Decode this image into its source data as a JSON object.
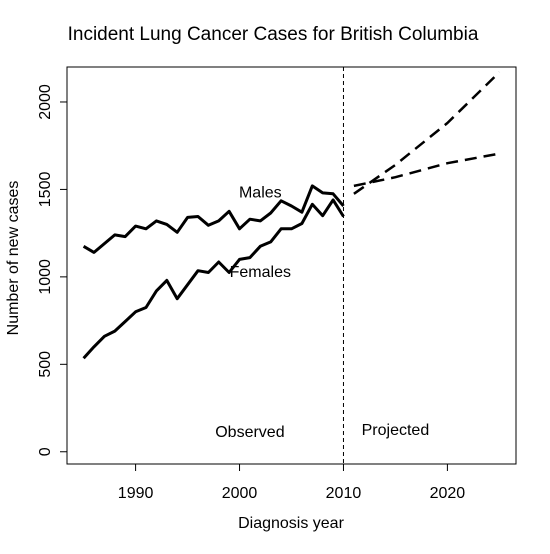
{
  "chart_data": {
    "type": "line",
    "title": "Incident Lung Cancer Cases for British Columbia",
    "xlabel": "Diagnosis year",
    "ylabel": "Number of new cases",
    "xlim": [
      1983.4,
      2026.6
    ],
    "ylim": [
      -70,
      2200
    ],
    "x_ticks": [
      1990,
      2000,
      2010,
      2020
    ],
    "y_ticks": [
      0,
      500,
      1000,
      1500,
      2000
    ],
    "grid": false,
    "divider_x": 2010,
    "colors": {
      "line": "#000000",
      "background": "#ffffff"
    },
    "annotations": [
      {
        "text": "Observed",
        "x": 2001,
        "y": 85
      },
      {
        "text": "Projected",
        "x": 2015,
        "y": 95
      },
      {
        "text": "Males",
        "x": 2002,
        "y": 1455
      },
      {
        "text": "Females",
        "x": 2002,
        "y": 1000
      }
    ],
    "series": [
      {
        "name": "Males",
        "style": "solid",
        "x": [
          1985,
          1986,
          1987,
          1988,
          1989,
          1990,
          1991,
          1992,
          1993,
          1994,
          1995,
          1996,
          1997,
          1998,
          1999,
          2000,
          2001,
          2002,
          2003,
          2004,
          2005,
          2006,
          2007,
          2008,
          2009,
          2010
        ],
        "values": [
          1175,
          1140,
          1190,
          1240,
          1230,
          1290,
          1275,
          1320,
          1300,
          1255,
          1340,
          1345,
          1295,
          1320,
          1375,
          1275,
          1330,
          1320,
          1365,
          1435,
          1405,
          1370,
          1520,
          1480,
          1475,
          1405
        ]
      },
      {
        "name": "Females",
        "style": "solid",
        "x": [
          1985,
          1986,
          1987,
          1988,
          1989,
          1990,
          1991,
          1992,
          1993,
          1994,
          1995,
          1996,
          1997,
          1998,
          1999,
          2000,
          2001,
          2002,
          2003,
          2004,
          2005,
          2006,
          2007,
          2008,
          2009,
          2010
        ],
        "values": [
          535,
          600,
          660,
          690,
          745,
          800,
          825,
          920,
          980,
          875,
          955,
          1035,
          1025,
          1085,
          1025,
          1100,
          1110,
          1175,
          1200,
          1275,
          1275,
          1305,
          1415,
          1350,
          1440,
          1345
        ]
      },
      {
        "name": "Males projected",
        "style": "dashed",
        "x": [
          2011,
          2015,
          2020,
          2025
        ],
        "values": [
          1520,
          1570,
          1650,
          1705
        ]
      },
      {
        "name": "Females projected",
        "style": "dashed",
        "x": [
          2011,
          2015,
          2020,
          2025
        ],
        "values": [
          1475,
          1640,
          1880,
          2170
        ]
      }
    ]
  }
}
